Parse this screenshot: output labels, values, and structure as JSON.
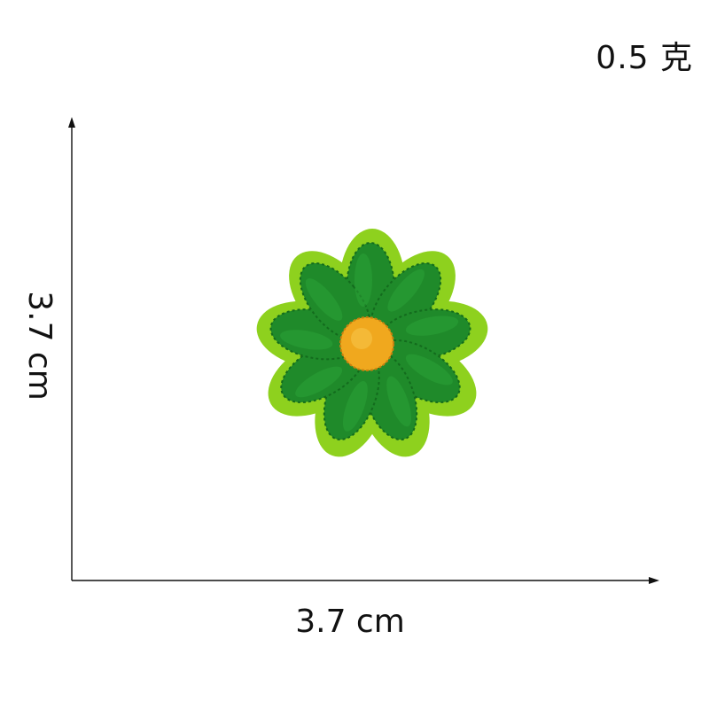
{
  "weight_label": "0.5 克",
  "width_label": "3.7 cm",
  "height_label": "3.7 cm",
  "colors": {
    "border": "#8ed11e",
    "petal": "#1f8a2a",
    "petal_dark": "#136b1d",
    "center": "#f0a81e",
    "axis": "#111111"
  },
  "icons": {
    "product": "embroidered-flower-patch"
  }
}
